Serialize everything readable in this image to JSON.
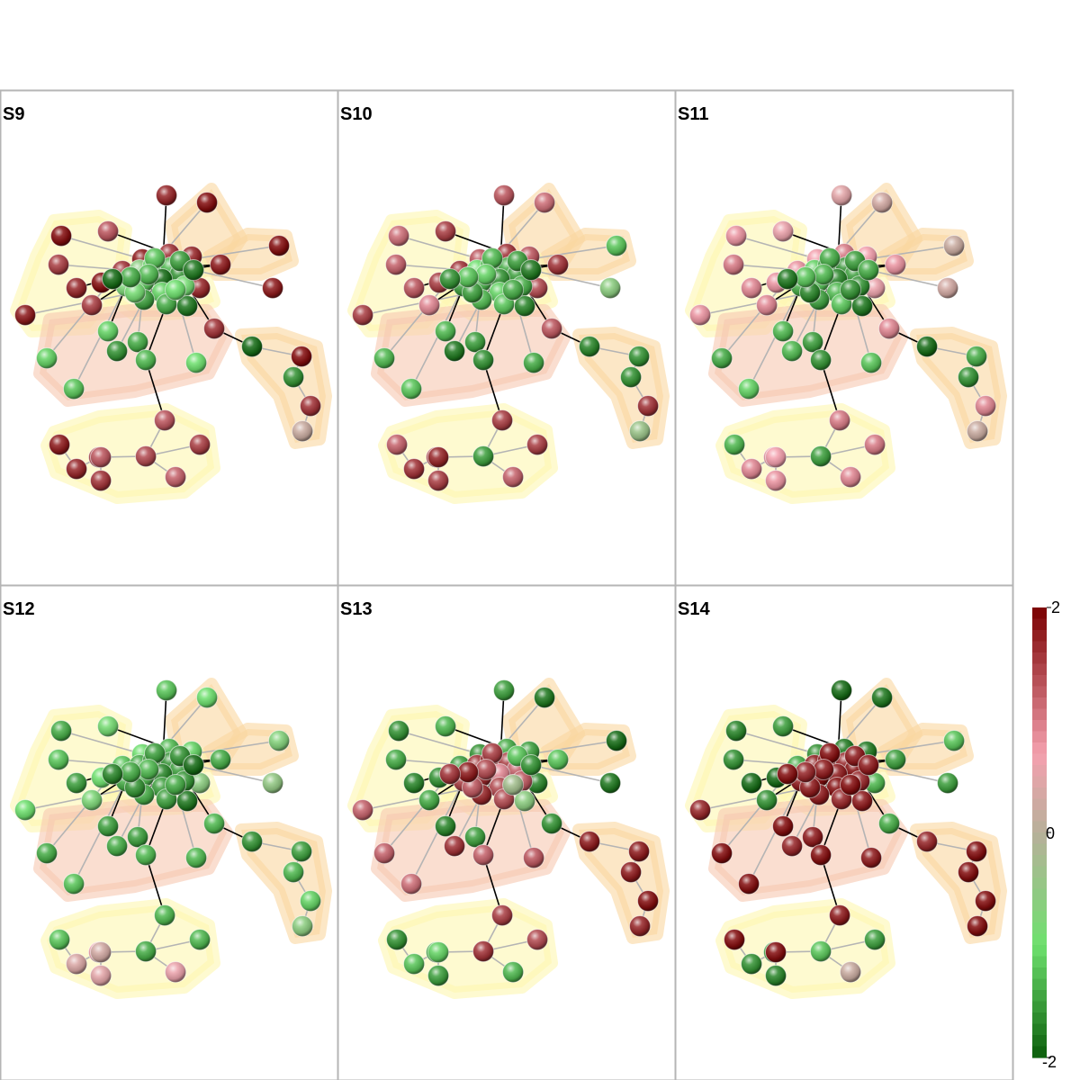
{
  "panels": [
    {
      "title": "S9",
      "values": [
        1.7,
        1.9,
        1.3,
        1.9,
        1.5,
        1.7,
        1.8,
        1.5,
        1.9,
        1.6,
        1.8,
        1.6,
        1.7,
        1.8,
        1.9,
        1.8,
        1.7,
        1.6,
        -0.6,
        -1.0,
        -1.3,
        -1.6,
        -1.9,
        -1.2,
        -0.8,
        -0.9,
        -1.1,
        -1.5,
        -1.4,
        -1.8,
        -1.2,
        -0.9,
        -1.0,
        -1.3,
        -1.4,
        -1.9,
        -1.5,
        -1.8,
        -1.1,
        -1.4,
        -1.6,
        -1.3,
        -1.0,
        -1.2,
        -1.1,
        -1.9,
        1.9,
        -1.6,
        1.6,
        0.2,
        1.3,
        1.4,
        1.5,
        1.2,
        1.4,
        1.6,
        1.7,
        1.8,
        1.3
      ]
    },
    {
      "title": "S10",
      "values": [
        1.3,
        1.1,
        1.5,
        1.1,
        1.2,
        1.3,
        1.5,
        0.9,
        1.5,
        1.6,
        1.3,
        1.6,
        1.3,
        1.6,
        -1.2,
        -0.6,
        1.4,
        1.3,
        -1.0,
        -1.2,
        -1.4,
        -1.5,
        -1.6,
        -1.3,
        -1.5,
        -1.4,
        -1.1,
        -1.3,
        -1.2,
        -1.7,
        -1.3,
        -1.5,
        -1.4,
        -1.1,
        -1.2,
        -1.6,
        -1.5,
        -1.8,
        -1.3,
        -1.5,
        -1.8,
        -1.6,
        -1.4,
        -1.2,
        -1.3,
        -1.7,
        -1.6,
        -1.6,
        1.6,
        -0.4,
        1.5,
        -1.5,
        1.5,
        1.2,
        1.3,
        1.5,
        1.6,
        1.2,
        1.7
      ]
    },
    {
      "title": "S11",
      "values": [
        0.5,
        0.3,
        0.6,
        0.8,
        1.0,
        0.9,
        0.8,
        0.9,
        0.8,
        0.8,
        0.7,
        1.0,
        0.7,
        0.8,
        0.2,
        0.3,
        0.6,
        0.9,
        -1.1,
        -1.4,
        -1.6,
        -1.5,
        -1.7,
        -1.2,
        -1.4,
        -1.6,
        -1.3,
        -1.5,
        -1.2,
        -1.8,
        -1.4,
        -1.7,
        -1.6,
        -1.3,
        -1.2,
        -1.8,
        -1.5,
        -1.4,
        -1.3,
        -1.5,
        -1.3,
        -1.6,
        -1.2,
        -1.1,
        -1.4,
        -1.9,
        -1.4,
        -1.6,
        0.9,
        0.2,
        1.0,
        -1.5,
        1.0,
        0.9,
        0.8,
        0.8,
        0.9,
        -1.3,
        0.7
      ]
    },
    {
      "title": "S12",
      "values": [
        -1.2,
        -1.0,
        -0.9,
        -1.4,
        -1.2,
        -1.5,
        -1.0,
        -0.8,
        -1.0,
        -1.2,
        -1.0,
        -1.3,
        -1.1,
        -1.4,
        -0.7,
        -0.5,
        -0.6,
        -1.3,
        -1.4,
        -1.5,
        -1.6,
        -1.5,
        -1.7,
        -1.3,
        -1.4,
        -1.6,
        -1.5,
        -1.4,
        -1.5,
        -1.8,
        -1.5,
        -1.6,
        -1.4,
        -1.3,
        -1.4,
        -1.7,
        -1.6,
        -1.9,
        -1.5,
        -1.5,
        -1.4,
        -1.3,
        -1.3,
        -1.2,
        -1.4,
        -1.6,
        -1.5,
        -1.3,
        -1.1,
        -0.6,
        -1.3,
        -1.4,
        -1.3,
        0.6,
        0.7,
        0.5,
        0.4,
        -1.2,
        0.3
      ]
    },
    {
      "title": "S13",
      "values": [
        -1.5,
        -1.8,
        -1.3,
        -1.6,
        -1.4,
        -1.7,
        1.2,
        -1.4,
        -1.6,
        -1.5,
        -1.6,
        -1.4,
        -1.5,
        -1.2,
        -1.9,
        -1.8,
        -1.7,
        -1.6,
        1.6,
        1.8,
        1.5,
        1.2,
        0.9,
        1.7,
        1.5,
        1.3,
        1.4,
        1.7,
        1.4,
        -0.6,
        1.5,
        1.3,
        -0.3,
        1.4,
        1.8,
        1.6,
        -1.2,
        -1.6,
        -1.7,
        -1.5,
        1.6,
        1.2,
        1.3,
        1.1,
        1.2,
        1.8,
        1.8,
        1.8,
        1.9,
        1.7,
        1.5,
        1.6,
        1.4,
        -1.3,
        -1.4,
        -1.5,
        -1.2,
        -1.6,
        -1.1
      ]
    },
    {
      "title": "S14",
      "values": [
        -1.9,
        -1.8,
        -1.5,
        -1.7,
        -1.6,
        -1.9,
        1.7,
        -1.6,
        -1.9,
        -1.4,
        -1.6,
        -1.8,
        -1.8,
        -1.5,
        -1.2,
        -1.5,
        -1.3,
        -1.4,
        1.8,
        1.9,
        1.7,
        1.9,
        1.8,
        1.9,
        1.8,
        1.7,
        1.9,
        1.8,
        1.7,
        1.8,
        1.9,
        1.8,
        1.9,
        1.8,
        1.7,
        1.9,
        1.8,
        1.8,
        1.9,
        1.8,
        1.7,
        1.9,
        1.8,
        1.9,
        1.9,
        1.7,
        1.9,
        1.9,
        1.9,
        1.9,
        1.8,
        -1.2,
        -1.5,
        0.2,
        -1.4,
        -1.7,
        -1.6,
        1.9,
        1.9
      ]
    }
  ],
  "colorbar": {
    "max_label": "2",
    "mid_label": "0",
    "min_label": "-2",
    "range": [
      -2,
      2
    ]
  },
  "colors": {
    "high": "#7a0000",
    "pink": "#f4a0ae",
    "neutral": "#b8b09a",
    "light_green": "#6ee06e",
    "low": "#0b5e0b",
    "hull_yellow": "#fdf7b0",
    "hull_orange": "#fad7a0",
    "hull_salmon": "#f6c8b0",
    "edge_gray": "#b4b4b4",
    "edge_black": "#000000"
  }
}
